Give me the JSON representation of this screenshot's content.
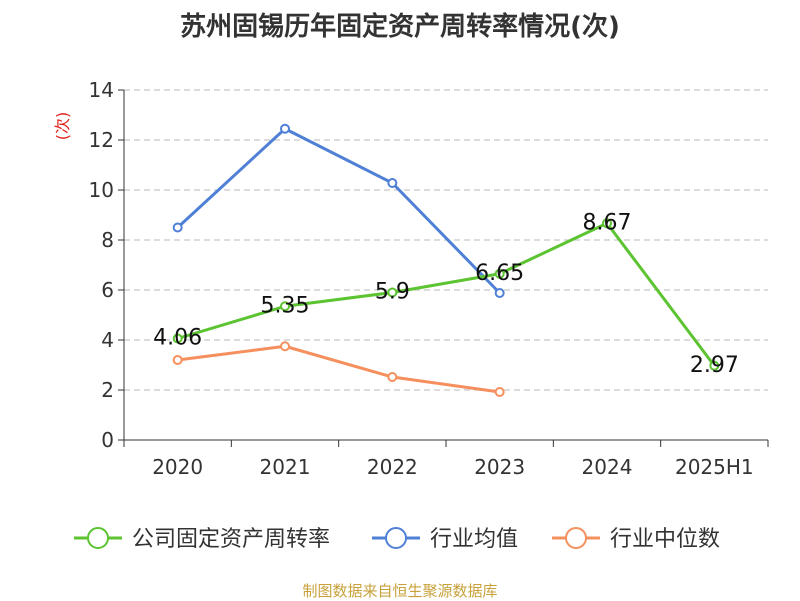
{
  "chart_data": {
    "type": "line",
    "title": "苏州固锡历年固定资产周转率情况(次)",
    "ylabel": "(次)",
    "categories": [
      "2020",
      "2021",
      "2022",
      "2023",
      "2024",
      "2025H1"
    ],
    "ylim": [
      0,
      14
    ],
    "yticks": [
      0,
      2,
      4,
      6,
      8,
      10,
      12,
      14
    ],
    "grid": true,
    "legend_position": "bottom",
    "series": [
      {
        "name": "公司固定资产周转率",
        "color": "#5cc331",
        "values": [
          4.06,
          5.35,
          5.9,
          6.65,
          8.67,
          2.97
        ],
        "labels": [
          "4.06",
          "5.35",
          "5.9",
          "6.65",
          "8.67",
          "2.97"
        ],
        "show_labels": true
      },
      {
        "name": "行业均值",
        "color": "#4f80d6",
        "values": [
          8.5,
          12.45,
          10.28,
          5.88,
          null,
          null
        ],
        "show_labels": false
      },
      {
        "name": "行业中位数",
        "color": "#f5905e",
        "values": [
          3.2,
          3.75,
          2.52,
          1.92,
          null,
          null
        ],
        "show_labels": false
      }
    ]
  },
  "source": {
    "text": "制图数据来自恒生聚源数据库",
    "color": "#c9a13b"
  },
  "colors": {
    "axis": "#333333",
    "grid": "#c8c8c8",
    "ylabel": "#e0201b"
  }
}
